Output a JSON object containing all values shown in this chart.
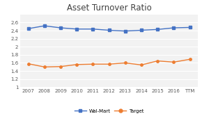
{
  "title": "Asset Turnover Ratio",
  "x_labels": [
    "2007",
    "2008",
    "2009",
    "2010",
    "2011",
    "2012",
    "2013",
    "2014",
    "2015",
    "2016",
    "TTM"
  ],
  "walmart": [
    2.45,
    2.52,
    2.47,
    2.44,
    2.44,
    2.41,
    2.39,
    2.41,
    2.43,
    2.47,
    2.48
  ],
  "target": [
    1.58,
    1.5,
    1.51,
    1.56,
    1.57,
    1.57,
    1.6,
    1.55,
    1.65,
    1.62,
    1.69
  ],
  "walmart_color": "#4472C4",
  "target_color": "#ED7D31",
  "ylim_min": 1.0,
  "ylim_max": 2.8,
  "yticks": [
    1.0,
    1.2,
    1.4,
    1.6,
    1.8,
    2.0,
    2.2,
    2.4,
    2.6
  ],
  "bg_color": "#FFFFFF",
  "plot_bg_color": "#F2F2F2",
  "grid_color": "#FFFFFF",
  "title_fontsize": 8.5,
  "tick_fontsize": 5.0,
  "legend_labels": [
    "Wal-Mart",
    "Target"
  ]
}
